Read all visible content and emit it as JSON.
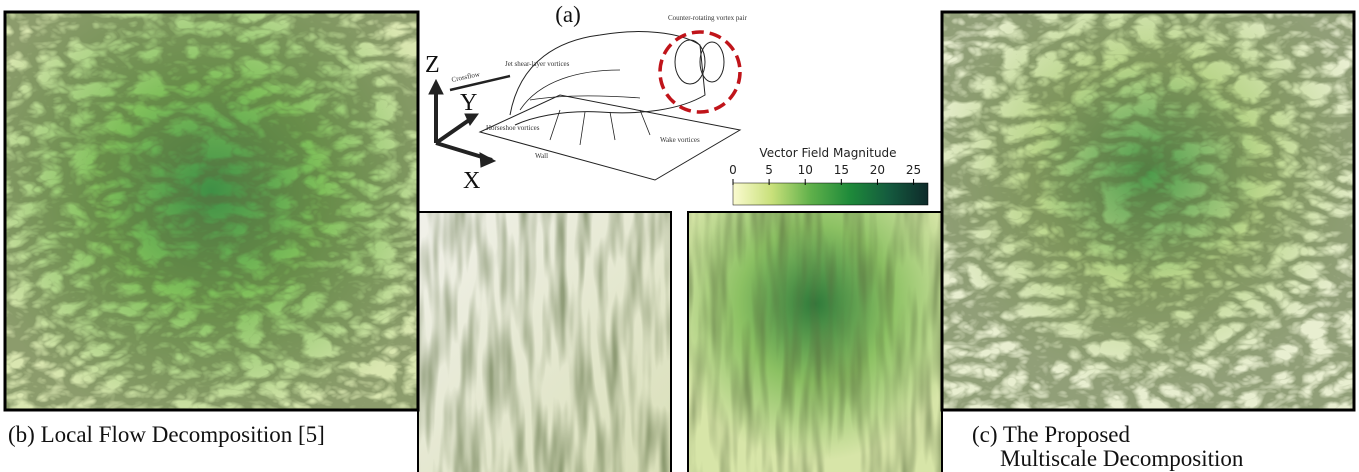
{
  "figure": {
    "panel_a": {
      "label": "(a)",
      "axis_z": "Z",
      "axis_y": "Y",
      "axis_x": "X",
      "crossflow": "Crossflow",
      "jet_shear": "Jet shear-layer vortices",
      "vortex_pair": "Counter-rotating vortex pair",
      "horseshoe": "Horseshoe vortices",
      "wake": "Wake vortices",
      "wall": "Wall"
    },
    "colorbar": {
      "title": "Vector Field Magnitude",
      "range": [
        0,
        27
      ],
      "ticks": [
        0,
        5,
        10,
        15,
        20,
        25
      ],
      "colors": [
        "#fbfbd0",
        "#c8e07a",
        "#5fb04a",
        "#1e8a3a",
        "#145a3e",
        "#0e2a2a"
      ]
    },
    "captions": {
      "b": "(b) Local Flow Decomposition [5]",
      "c_line1": "(c) The Proposed",
      "c_line2": "Multiscale Decomposition"
    }
  }
}
